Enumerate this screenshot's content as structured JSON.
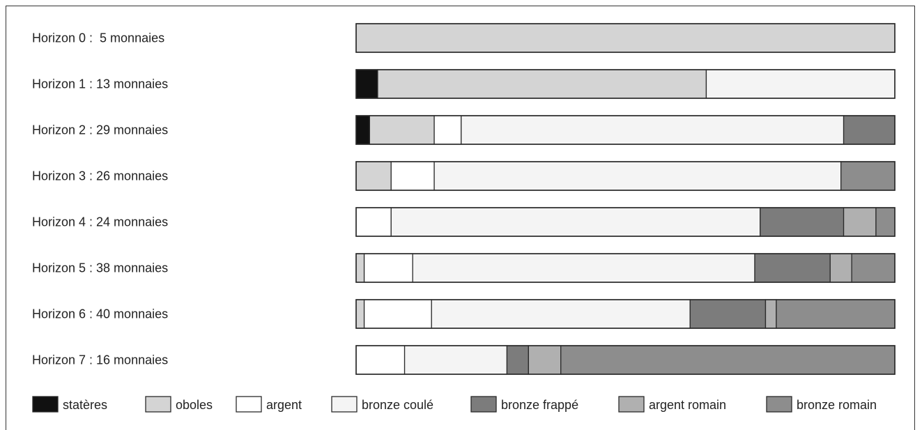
{
  "chart_data": {
    "type": "bar",
    "stacked": true,
    "normalized_percent": true,
    "categories": [
      "Horizon 0 :  5 monnaies",
      "Horizon 1 : 13 monnaies",
      "Horizon 2 : 29 monnaies",
      "Horizon 3 : 26 monnaies",
      "Horizon 4 : 24 monnaies",
      "Horizon 5 : 38 monnaies",
      "Horizon 6 : 40 monnaies",
      "Horizon 7 : 16 monnaies"
    ],
    "series": [
      {
        "name": "statères",
        "color": "#111111",
        "values": [
          0,
          4,
          2.5,
          0,
          0,
          0,
          0,
          0
        ]
      },
      {
        "name": "oboles",
        "color": "#d4d4d4",
        "values": [
          100,
          61,
          12,
          6.5,
          0,
          1.5,
          1.5,
          0
        ]
      },
      {
        "name": "argent",
        "color": "#ffffff",
        "values": [
          0,
          0,
          5,
          8,
          6.5,
          9,
          12.5,
          9
        ]
      },
      {
        "name": "bronze coulé",
        "color": "#f4f4f4",
        "values": [
          0,
          35,
          71,
          75.5,
          68.5,
          63.5,
          48,
          19
        ]
      },
      {
        "name": "bronze frappé",
        "color": "#7c7c7c",
        "values": [
          0,
          0,
          9.5,
          0,
          15.5,
          14,
          14,
          4
        ]
      },
      {
        "name": "argent romain",
        "color": "#b0b0b0",
        "values": [
          0,
          0,
          0,
          0,
          6,
          4,
          2,
          6
        ]
      },
      {
        "name": "bronze romain",
        "color": "#8d8d8d",
        "values": [
          0,
          0,
          0,
          10,
          3.5,
          8,
          22,
          62
        ]
      }
    ]
  }
}
